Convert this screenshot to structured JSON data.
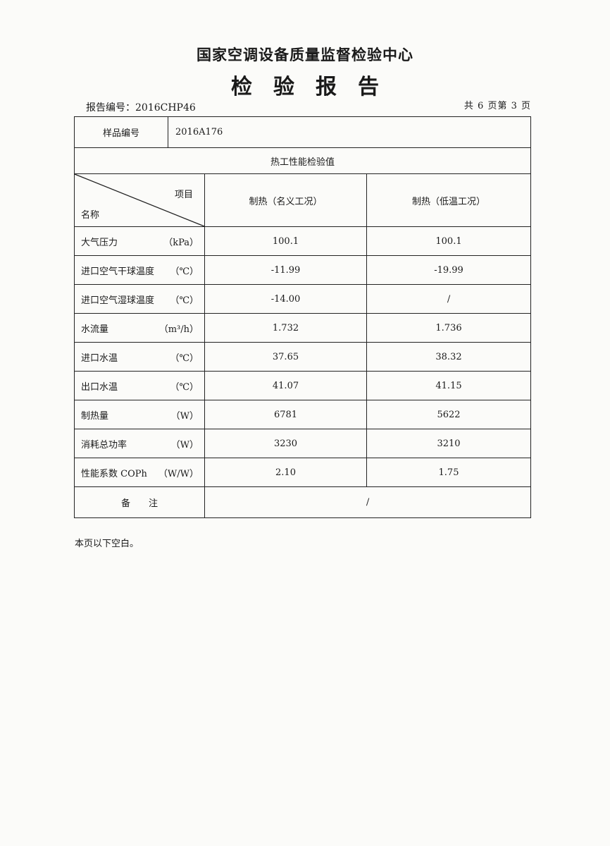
{
  "header": {
    "organization": "国家空调设备质量监督检验中心",
    "title": "检验报告",
    "report_no": "报告编号：2016CHP46",
    "page_info": "共 6 页第 3 页"
  },
  "table": {
    "sample_label": "样品编号",
    "sample_value": "2016A176",
    "section_title": "热工性能检验值",
    "corner_item": "项目",
    "corner_name": "名称",
    "columns": [
      "制热（名义工况）",
      "制热（低温工况）"
    ],
    "rows": [
      {
        "name": "大气压力",
        "unit": "（kPa）",
        "values": [
          "100.1",
          "100.1"
        ]
      },
      {
        "name": "进口空气干球温度",
        "unit": "（℃）",
        "values": [
          "-11.99",
          "-19.99"
        ]
      },
      {
        "name": "进口空气湿球温度",
        "unit": "（℃）",
        "values": [
          "-14.00",
          "/"
        ]
      },
      {
        "name": "水流量",
        "unit": "（m³/h）",
        "values": [
          "1.732",
          "1.736"
        ]
      },
      {
        "name": "进口水温",
        "unit": "（℃）",
        "values": [
          "37.65",
          "38.32"
        ]
      },
      {
        "name": "出口水温",
        "unit": "（℃）",
        "values": [
          "41.07",
          "41.15"
        ]
      },
      {
        "name": "制热量",
        "unit": "（W）",
        "values": [
          "6781",
          "5622"
        ]
      },
      {
        "name": "消耗总功率",
        "unit": "（W）",
        "values": [
          "3230",
          "3210"
        ]
      },
      {
        "name": "性能系数 COPh",
        "unit": "（W/W）",
        "values": [
          "2.10",
          "1.75"
        ]
      }
    ],
    "remark_label": "备　　注",
    "remark_value": "/"
  },
  "footer": {
    "blank_note": "本页以下空白。"
  }
}
